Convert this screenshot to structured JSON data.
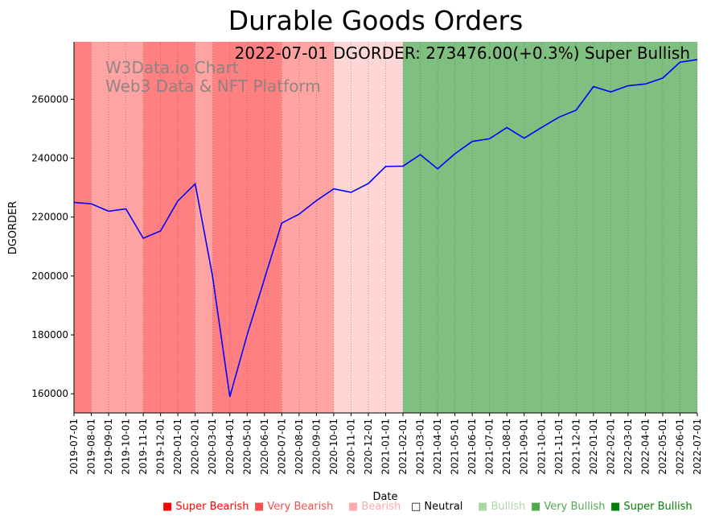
{
  "chart_data": {
    "type": "line",
    "title": "Durable Goods Orders",
    "xlabel": "Date",
    "ylabel": "DGORDER",
    "annotation": "2022-07-01 DGORDER: 273476.00(+0.3%) Super Bullish",
    "watermark": [
      "W3Data.io Chart",
      "Web3 Data & NFT Platform"
    ],
    "ylim": [
      153500,
      279500
    ],
    "yticks": [
      160000,
      180000,
      200000,
      220000,
      240000,
      260000
    ],
    "x": [
      "2019-07-01",
      "2019-08-01",
      "2019-09-01",
      "2019-10-01",
      "2019-11-01",
      "2019-12-01",
      "2020-01-01",
      "2020-02-01",
      "2020-03-01",
      "2020-04-01",
      "2020-05-01",
      "2020-06-01",
      "2020-07-01",
      "2020-08-01",
      "2020-09-01",
      "2020-10-01",
      "2020-11-01",
      "2020-12-01",
      "2021-01-01",
      "2021-02-01",
      "2021-03-01",
      "2021-04-01",
      "2021-05-01",
      "2021-06-01",
      "2021-07-01",
      "2021-08-01",
      "2021-09-01",
      "2021-10-01",
      "2021-11-01",
      "2021-12-01",
      "2022-01-01",
      "2022-02-01",
      "2022-03-01",
      "2022-04-01",
      "2022-05-01",
      "2022-06-01",
      "2022-07-01"
    ],
    "series": [
      {
        "name": "DGORDER",
        "color": "#0000ff",
        "values": [
          225000,
          224500,
          222000,
          222800,
          212800,
          215300,
          225500,
          231300,
          200000,
          159000,
          180000,
          199000,
          218000,
          221000,
          225600,
          229600,
          228400,
          231400,
          237200,
          237300,
          241200,
          236400,
          241500,
          245700,
          246600,
          250400,
          246800,
          250400,
          253900,
          256300,
          264300,
          262500,
          264600,
          265200,
          267200,
          272600,
          273476
        ]
      }
    ],
    "regimes": [
      {
        "from": 0,
        "to": 1,
        "level": "Very Bearish"
      },
      {
        "from": 1,
        "to": 4,
        "level": "Bearish"
      },
      {
        "from": 4,
        "to": 7,
        "level": "Very Bearish"
      },
      {
        "from": 7,
        "to": 8,
        "level": "Bearish"
      },
      {
        "from": 8,
        "to": 12,
        "level": "Very Bearish"
      },
      {
        "from": 12,
        "to": 15,
        "level": "Bearish"
      },
      {
        "from": 15,
        "to": 19,
        "level": "Neutral"
      },
      {
        "from": 19,
        "to": 36,
        "level": "Bullish"
      }
    ],
    "legend": [
      {
        "marker": "■",
        "label": "Super Bearish",
        "color": "#ff0000"
      },
      {
        "marker": "■",
        "label": "Very Bearish",
        "color": "#f05050"
      },
      {
        "marker": "■",
        "label": "Bearish",
        "color": "#ffaaaa"
      },
      {
        "marker": "□",
        "label": "Neutral",
        "color": "#000000"
      },
      {
        "marker": "■",
        "label": "Bullish",
        "color": "#a8d8a8"
      },
      {
        "marker": "■",
        "label": "Very Bullish",
        "color": "#50aa50"
      },
      {
        "marker": "■",
        "label": "Super Bullish",
        "color": "#008000"
      }
    ],
    "regime_colors": {
      "Very Bearish": "#ff8080",
      "Bearish": "#ffa3a3",
      "Neutral": "#ffd6d6",
      "Bullish": "#7fbf7f"
    }
  }
}
